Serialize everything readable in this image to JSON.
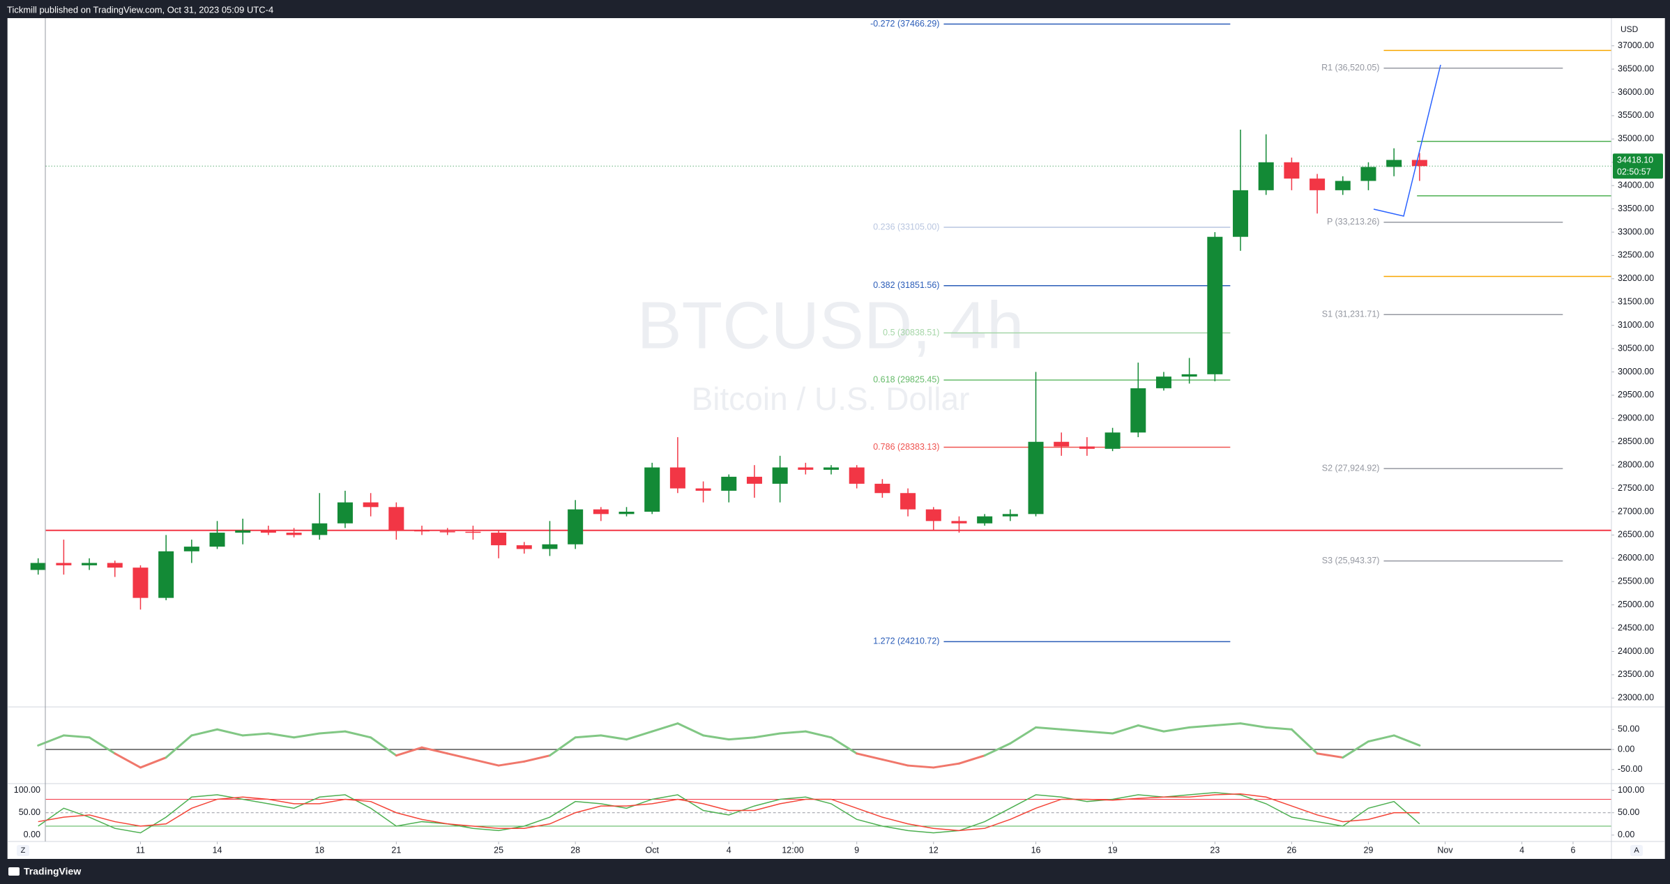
{
  "header": {
    "text": "Tickmill published on TradingView.com, Oct 31, 2023 05:09 UTC-4"
  },
  "footer": {
    "brand": "TradingView",
    "left_button": "Z",
    "right_button": "A"
  },
  "chart_data": [
    {
      "type": "candlestick",
      "title": "BTCUSD, 4h",
      "subtitle": "Bitcoin / U.S. Dollar",
      "currency": "USD",
      "x": [
        7,
        8,
        9,
        10,
        11,
        12,
        13,
        14,
        15,
        16,
        17,
        18,
        19,
        20,
        21,
        22,
        23,
        24,
        25,
        26,
        27,
        28,
        29,
        30,
        31,
        32,
        33,
        34,
        35,
        36,
        37,
        38,
        39,
        40,
        41,
        42,
        43,
        44,
        45,
        46,
        47,
        48,
        49,
        50,
        51,
        52,
        53,
        54,
        55,
        56,
        57,
        58,
        59,
        60,
        61
      ],
      "open": [
        25750,
        25900,
        25850,
        25900,
        25800,
        25150,
        26150,
        26250,
        26550,
        26600,
        26550,
        26500,
        26750,
        27200,
        27100,
        26600,
        26580,
        26570,
        26550,
        26280,
        26200,
        26300,
        27050,
        26950,
        27000,
        27950,
        27500,
        27450,
        27750,
        27600,
        27950,
        27900,
        27950,
        27600,
        27400,
        27050,
        26800,
        26750,
        26900,
        26950,
        28500,
        28400,
        28350,
        28700,
        29650,
        29900,
        29950,
        32900,
        33900,
        34500,
        34150,
        33900,
        34100,
        34400,
        34550
      ],
      "high": [
        26000,
        26400,
        26000,
        25950,
        25850,
        26500,
        26400,
        26800,
        26850,
        26700,
        26650,
        27400,
        27450,
        27400,
        27200,
        26700,
        26650,
        26700,
        26600,
        26350,
        26800,
        27250,
        27100,
        27100,
        28050,
        28600,
        27650,
        27800,
        28000,
        28200,
        28050,
        28000,
        28000,
        27700,
        27500,
        27100,
        26900,
        26950,
        27050,
        30000,
        28700,
        28600,
        28800,
        30200,
        30000,
        30300,
        33000,
        35200,
        35100,
        34600,
        34250,
        34200,
        34500,
        34800,
        34700
      ],
      "low": [
        25650,
        25650,
        25750,
        25600,
        24900,
        25100,
        25900,
        26200,
        26300,
        26500,
        26450,
        26400,
        26650,
        26900,
        26400,
        26500,
        26500,
        26400,
        26000,
        26100,
        26050,
        26200,
        26800,
        26900,
        26950,
        27400,
        27200,
        27200,
        27300,
        27200,
        27800,
        27800,
        27500,
        27300,
        26900,
        26600,
        26550,
        26700,
        26800,
        26900,
        28200,
        28200,
        28300,
        28600,
        29600,
        29750,
        29800,
        32600,
        33800,
        33900,
        33400,
        33800,
        33900,
        34200,
        34100
      ],
      "close": [
        25900,
        25850,
        25900,
        25800,
        25150,
        26150,
        26250,
        26550,
        26600,
        26550,
        26500,
        26750,
        27200,
        27100,
        26600,
        26580,
        26570,
        26550,
        26280,
        26200,
        26300,
        27050,
        26950,
        27000,
        27950,
        27500,
        27450,
        27750,
        27600,
        27950,
        27900,
        27950,
        27600,
        27400,
        27050,
        26800,
        26750,
        26900,
        26950,
        28500,
        28400,
        28350,
        28700,
        29650,
        29900,
        29950,
        32900,
        33900,
        34500,
        34150,
        33900,
        34100,
        34400,
        34550,
        34418.1
      ],
      "up_color": "#138a36",
      "down_color": "#f23645",
      "xlim": [
        5.8,
        68.5
      ],
      "ylim": [
        22840,
        37594
      ],
      "grid": false,
      "xticks": [
        11,
        14,
        18,
        21,
        25,
        28,
        {
          "value": 31,
          "label": "Oct"
        },
        {
          "value": 34,
          "label": "4"
        },
        {
          "value": 36.5,
          "label": "12:00"
        },
        {
          "value": 39,
          "label": "9"
        },
        {
          "value": 42,
          "label": "12"
        },
        {
          "value": 46,
          "label": "16"
        },
        {
          "value": 49,
          "label": "19"
        },
        {
          "value": 53,
          "label": "23"
        },
        {
          "value": 56,
          "label": "26"
        },
        {
          "value": 59,
          "label": "29"
        },
        {
          "value": 62,
          "label": "Nov"
        },
        {
          "value": 65,
          "label": "4"
        },
        {
          "value": 67,
          "label": "6"
        }
      ],
      "yticks": [
        {
          "value": 23000,
          "label": "23000.00"
        },
        {
          "value": 23500,
          "label": "23500.00"
        },
        {
          "value": 24000,
          "label": "24000.00"
        },
        {
          "value": 24500,
          "label": "24500.00"
        },
        {
          "value": 25000,
          "label": "25000.00"
        },
        {
          "value": 25500,
          "label": "25500.00"
        },
        {
          "value": 26000,
          "label": "26000.00"
        },
        {
          "value": 26500,
          "label": "26500.00"
        },
        {
          "value": 27000,
          "label": "27000.00"
        },
        {
          "value": 27500,
          "label": "27500.00"
        },
        {
          "value": 28000,
          "label": "28000.00"
        },
        {
          "value": 28500,
          "label": "28500.00"
        },
        {
          "value": 29000,
          "label": "29000.00"
        },
        {
          "value": 29500,
          "label": "29500.00"
        },
        {
          "value": 30000,
          "label": "30000.00"
        },
        {
          "value": 30500,
          "label": "30500.00"
        },
        {
          "value": 31000,
          "label": "31000.00"
        },
        {
          "value": 31500,
          "label": "31500.00"
        },
        {
          "value": 32000,
          "label": "32000.00"
        },
        {
          "value": 32500,
          "label": "32500.00"
        },
        {
          "value": 33000,
          "label": "33000.00"
        },
        {
          "value": 33500,
          "label": "33500.00"
        },
        {
          "value": 34000,
          "label": "34000.00"
        },
        {
          "value": 34500,
          "label": "34500.00"
        },
        {
          "value": 35000,
          "label": "35000.00"
        },
        {
          "value": 35500,
          "label": "35500.00"
        },
        {
          "value": 36000,
          "label": "36000.00"
        },
        {
          "value": 36500,
          "label": "36500.00"
        },
        {
          "value": 37000,
          "label": "37000.00"
        }
      ],
      "fib_levels": [
        {
          "label": "-0.272 (37466.29)",
          "value": 37466.29,
          "color": "#2a5cb8"
        },
        {
          "label": "0.236 (33105.00)",
          "value": 33105.0,
          "color": "#b9c6e0"
        },
        {
          "label": "0.382 (31851.56)",
          "value": 31851.56,
          "color": "#2a5cb8"
        },
        {
          "label": "0.5 (30838.51)",
          "value": 30838.51,
          "color": "#a5d6a7"
        },
        {
          "label": "0.618 (29825.45)",
          "value": 29825.45,
          "color": "#66bb6a"
        },
        {
          "label": "0.786 (28383.13)",
          "value": 28383.13,
          "color": "#ef5350"
        },
        {
          "label": "1.272 (24210.72)",
          "value": 24210.72,
          "color": "#2a5cb8"
        }
      ],
      "pivots": [
        {
          "label": "R1 (36,520.05)",
          "value": 36520.05
        },
        {
          "label": "P (33,213.26)",
          "value": 33213.26
        },
        {
          "label": "S1 (31,231.71)",
          "value": 31231.71
        },
        {
          "label": "S2 (27,924.92)",
          "value": 27924.92
        },
        {
          "label": "S3 (25,943.37)",
          "value": 25943.37
        }
      ],
      "pivot_color": "#9598a1",
      "support_line": {
        "value": 26600,
        "color": "#f23645"
      },
      "zone_lines": [
        {
          "value": 36900,
          "color": "#f7a600"
        },
        {
          "value": 32050,
          "color": "#f7a600"
        },
        {
          "value": 34950,
          "color": "#4caf50"
        },
        {
          "value": 33780,
          "color": "#4caf50"
        }
      ],
      "last_price": {
        "value": 34418.1,
        "label": "34418.10",
        "countdown": "02:50:57",
        "color": "#138a36"
      }
    },
    {
      "type": "line",
      "x": [
        7,
        8,
        9,
        10,
        11,
        12,
        13,
        14,
        15,
        16,
        17,
        18,
        19,
        20,
        21,
        22,
        23,
        24,
        25,
        26,
        27,
        28,
        29,
        30,
        31,
        32,
        33,
        34,
        35,
        36,
        37,
        38,
        39,
        40,
        41,
        42,
        43,
        44,
        45,
        46,
        47,
        48,
        49,
        50,
        51,
        52,
        53,
        54,
        55,
        56,
        57,
        58,
        59,
        60,
        61
      ],
      "values": [
        10,
        35,
        30,
        -10,
        -45,
        -20,
        35,
        50,
        35,
        40,
        30,
        40,
        45,
        30,
        -15,
        5,
        -10,
        -25,
        -40,
        -30,
        -15,
        30,
        35,
        25,
        45,
        65,
        35,
        25,
        30,
        40,
        45,
        30,
        -10,
        -25,
        -40,
        -45,
        -35,
        -15,
        15,
        55,
        50,
        45,
        40,
        60,
        45,
        55,
        60,
        65,
        55,
        50,
        -10,
        -20,
        20,
        35,
        10
      ],
      "positive_color": "#81c784",
      "negative_color": "#f0776b",
      "ylim": [
        -81.6,
        102.6
      ],
      "yticks": [
        {
          "value": 50,
          "label": "50.00"
        },
        {
          "value": 0,
          "label": "0.00"
        },
        {
          "value": -50,
          "label": "-50.00"
        }
      ]
    },
    {
      "type": "line",
      "x": [
        7,
        8,
        9,
        10,
        11,
        12,
        13,
        14,
        15,
        16,
        17,
        18,
        19,
        20,
        21,
        22,
        23,
        24,
        25,
        26,
        27,
        28,
        29,
        30,
        31,
        32,
        33,
        34,
        35,
        36,
        37,
        38,
        39,
        40,
        41,
        42,
        43,
        44,
        45,
        46,
        47,
        48,
        49,
        50,
        51,
        52,
        53,
        54,
        55,
        56,
        57,
        58,
        59,
        60,
        61
      ],
      "series": [
        {
          "color": "#4caf50",
          "values": [
            20,
            60,
            40,
            15,
            5,
            40,
            85,
            90,
            80,
            70,
            60,
            85,
            90,
            60,
            20,
            30,
            25,
            15,
            10,
            20,
            40,
            75,
            70,
            60,
            80,
            90,
            55,
            45,
            65,
            80,
            85,
            70,
            35,
            20,
            10,
            5,
            10,
            30,
            60,
            90,
            85,
            75,
            80,
            90,
            85,
            90,
            95,
            90,
            70,
            40,
            30,
            20,
            60,
            75,
            25
          ]
        },
        {
          "color": "#f44336",
          "values": [
            30,
            40,
            45,
            30,
            20,
            25,
            60,
            80,
            85,
            80,
            70,
            70,
            80,
            75,
            50,
            35,
            25,
            20,
            15,
            15,
            25,
            50,
            65,
            65,
            70,
            80,
            70,
            55,
            55,
            70,
            80,
            80,
            60,
            40,
            25,
            15,
            10,
            15,
            35,
            60,
            80,
            80,
            78,
            82,
            85,
            85,
            90,
            92,
            85,
            65,
            45,
            30,
            35,
            50,
            50
          ]
        }
      ],
      "levels": [
        {
          "value": 80,
          "color": "#f23645"
        },
        {
          "value": 50,
          "color": "#9598a1"
        },
        {
          "value": 20,
          "color": "#4caf50"
        }
      ],
      "ylim": [
        -14.3,
        111.9
      ],
      "yticks": [
        {
          "value": 100,
          "label": "100.00"
        },
        {
          "value": 50,
          "label": "50.00"
        },
        {
          "value": 0,
          "label": "0.00"
        }
      ]
    }
  ]
}
